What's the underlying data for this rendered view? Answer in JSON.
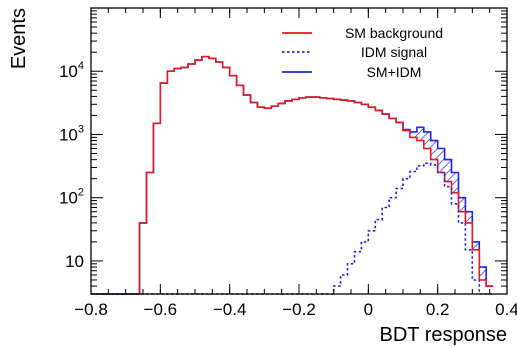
{
  "chart_data": {
    "type": "line",
    "xlabel": "BDT response",
    "ylabel": "Events",
    "xlim": [
      -0.8,
      0.4
    ],
    "ylim_log": [
      3,
      100000
    ],
    "y_scale": "log",
    "x_ticks": [
      "−0.8",
      "−0.6",
      "−0.4",
      "−0.2",
      "0",
      "0.2",
      "0.4"
    ],
    "x_tick_values": [
      -0.8,
      -0.6,
      -0.4,
      -0.2,
      0,
      0.2,
      0.4
    ],
    "y_ticks": [
      {
        "value": 10,
        "base": "10",
        "exp": ""
      },
      {
        "value": 100,
        "base": "10",
        "exp": "2"
      },
      {
        "value": 1000,
        "base": "10",
        "exp": "3"
      },
      {
        "value": 10000,
        "base": "10",
        "exp": "4"
      }
    ],
    "legend_position": "top-right",
    "x_edges": [
      -0.8,
      -0.78,
      -0.76,
      -0.74,
      -0.72,
      -0.7,
      -0.68,
      -0.66,
      -0.64,
      -0.62,
      -0.6,
      -0.58,
      -0.56,
      -0.54,
      -0.52,
      -0.5,
      -0.48,
      -0.46,
      -0.44,
      -0.42,
      -0.4,
      -0.38,
      -0.36,
      -0.34,
      -0.32,
      -0.3,
      -0.28,
      -0.26,
      -0.24,
      -0.22,
      -0.2,
      -0.18,
      -0.16,
      -0.14,
      -0.12,
      -0.1,
      -0.08,
      -0.06,
      -0.04,
      -0.02,
      0,
      0.02,
      0.04,
      0.06,
      0.08,
      0.1,
      0.12,
      0.14,
      0.16,
      0.18,
      0.2,
      0.22,
      0.24,
      0.26,
      0.28,
      0.3,
      0.32,
      0.34,
      0.36
    ],
    "series": [
      {
        "name": "SM background",
        "color": "#e8191c",
        "style": "solid",
        "values": [
          3,
          3,
          3,
          3,
          3,
          3,
          3,
          40,
          250,
          1500,
          6500,
          10000,
          11000,
          11500,
          13000,
          15000,
          17000,
          16000,
          14000,
          11500,
          8500,
          6000,
          4200,
          3200,
          2700,
          2600,
          2800,
          3100,
          3400,
          3600,
          3800,
          3900,
          3900,
          3800,
          3700,
          3600,
          3500,
          3400,
          3200,
          3000,
          2700,
          2400,
          2100,
          1800,
          1550,
          1150,
          900,
          800,
          600,
          400,
          250,
          180,
          120,
          60,
          40,
          15,
          5,
          4
        ]
      },
      {
        "name": "IDM signal",
        "color": "#1c24e8",
        "style": "dotted",
        "values": [
          3,
          3,
          3,
          3,
          3,
          3,
          3,
          3,
          3,
          3,
          3,
          3,
          3,
          3,
          3,
          3,
          3,
          3,
          3,
          3,
          3,
          3,
          3,
          3,
          3,
          3,
          3,
          3,
          3,
          3,
          3,
          3,
          3,
          3,
          3,
          4,
          6,
          9,
          14,
          20,
          30,
          45,
          70,
          100,
          140,
          200,
          260,
          320,
          350,
          330,
          250,
          150,
          80,
          40,
          15,
          5,
          3,
          3
        ]
      },
      {
        "name": "SM+IDM",
        "color": "#1c24e8",
        "style": "solid-hatched",
        "values": [
          3,
          3,
          3,
          3,
          3,
          3,
          3,
          40,
          250,
          1500,
          6500,
          10000,
          11000,
          11500,
          13000,
          15000,
          17000,
          16000,
          14000,
          11500,
          8500,
          6000,
          4200,
          3200,
          2700,
          2600,
          2800,
          3100,
          3400,
          3600,
          3800,
          3900,
          3900,
          3800,
          3700,
          3600,
          3500,
          3400,
          3200,
          3000,
          2700,
          2400,
          2100,
          1800,
          1550,
          1200,
          1100,
          1300,
          1100,
          800,
          600,
          400,
          250,
          100,
          60,
          20,
          8,
          4
        ]
      }
    ]
  }
}
